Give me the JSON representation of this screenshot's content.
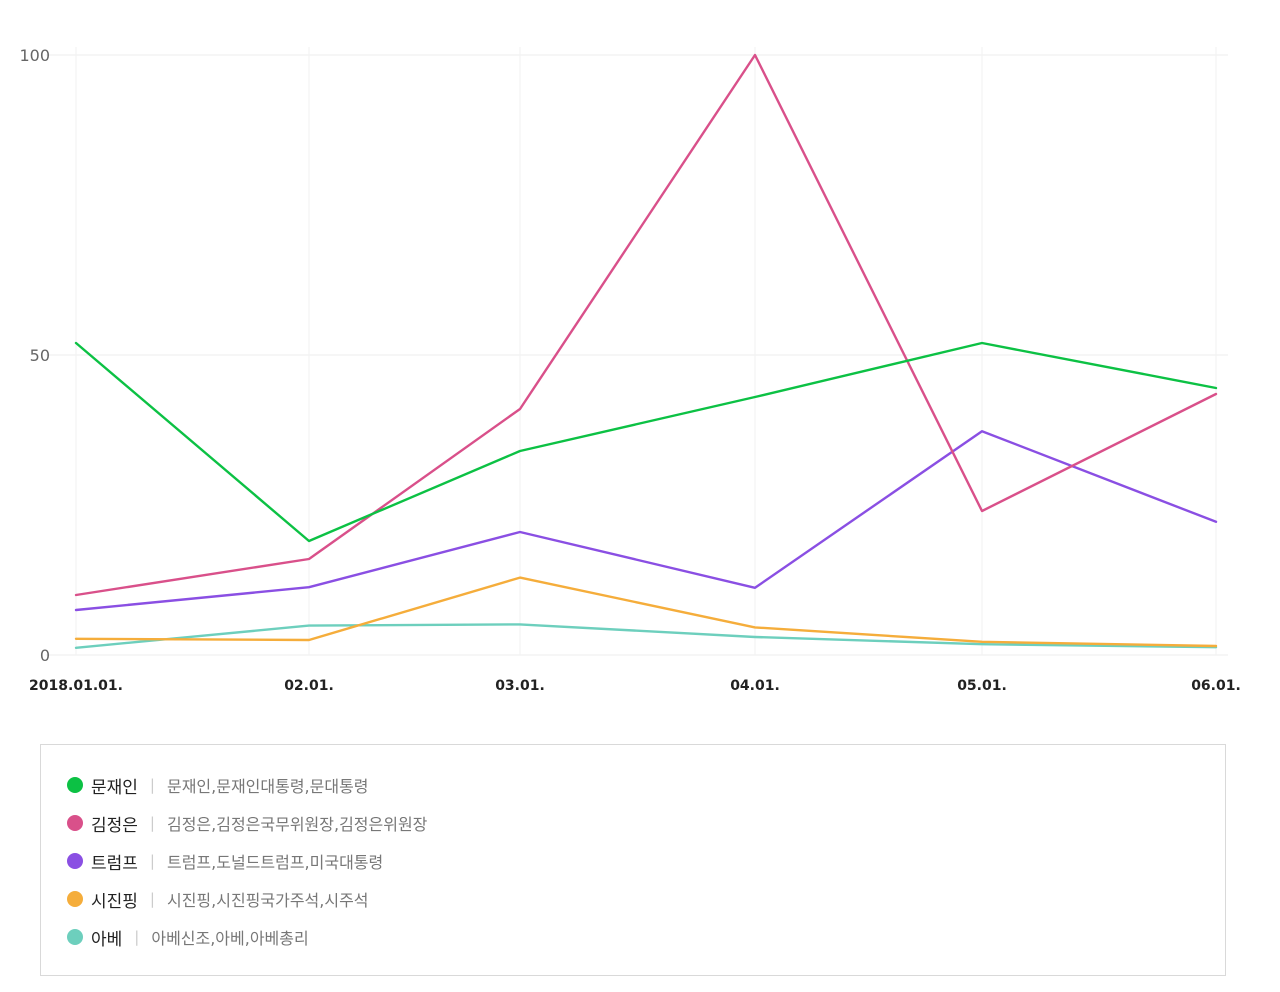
{
  "chart_data": {
    "type": "line",
    "categories": [
      "2018.01.01.",
      "02.01.",
      "03.01.",
      "04.01.",
      "05.01.",
      "06.01."
    ],
    "ylim": [
      0,
      100
    ],
    "yticks": [
      0,
      50,
      100
    ],
    "grid": true,
    "legend_position": "bottom",
    "series": [
      {
        "name": "문재인",
        "keywords": "문재인,문재인대통령,문대통령",
        "color": "#0cc144",
        "values": [
          52,
          19,
          34,
          43,
          52,
          44.5
        ]
      },
      {
        "name": "김정은",
        "keywords": "김정은,김정은국무위원장,김정은위원장",
        "color": "#d9508a",
        "values": [
          10,
          16,
          41,
          100,
          24,
          43.5
        ]
      },
      {
        "name": "트럼프",
        "keywords": "트럼프,도널드트럼프,미국대통령",
        "color": "#8a4fe3",
        "values": [
          7.5,
          11.3,
          20.5,
          11.2,
          37.3,
          22.2
        ]
      },
      {
        "name": "시진핑",
        "keywords": "시진핑,시진핑국가주석,시주석",
        "color": "#f5ad3b",
        "values": [
          2.7,
          2.5,
          12.9,
          4.6,
          2.2,
          1.5
        ]
      },
      {
        "name": "아베",
        "keywords": "아베신조,아베,아베총리",
        "color": "#6dcfbd",
        "values": [
          1.2,
          4.9,
          5.1,
          3.0,
          1.8,
          1.3
        ]
      }
    ]
  }
}
